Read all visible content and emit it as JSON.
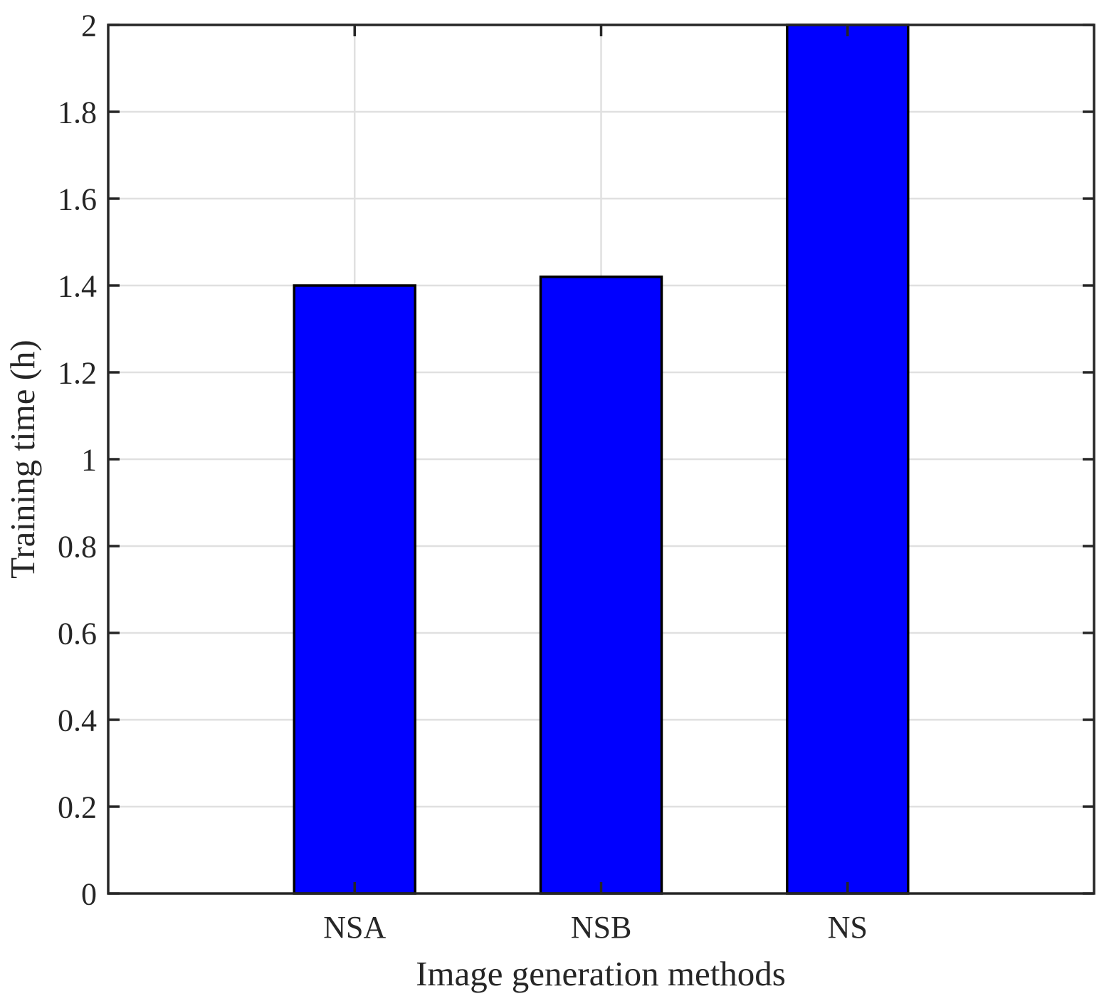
{
  "figure": {
    "background": "#FFFFFF"
  },
  "chart_data": {
    "type": "bar",
    "title": "",
    "xlabel": "Image generation methods",
    "ylabel": "Training time (h)",
    "categories": [
      "NSA",
      "NSB",
      "NS"
    ],
    "values": [
      1.4,
      1.42,
      2.0
    ],
    "series": [
      {
        "name": "Training time",
        "values": [
          1.4,
          1.42,
          2.0
        ]
      }
    ],
    "ylim": [
      0,
      2
    ],
    "ytick_values": [
      0,
      0.2,
      0.4,
      0.6,
      0.8,
      1,
      1.2,
      1.4,
      1.6,
      1.8,
      2
    ],
    "ytick_labels": [
      "0",
      "0.2",
      "0.4",
      "0.6",
      "0.8",
      "1",
      "1.2",
      "1.4",
      "1.6",
      "1.8",
      "2"
    ],
    "grid": true,
    "grid_horizontal": true,
    "grid_vertical_at_categories": true,
    "legend": false,
    "box": true,
    "tick_direction": "in",
    "bar_color": "#0000FF",
    "bar_edge_color": "#000000",
    "grid_color": "#E0E0E0",
    "axis_color": "#262626",
    "text_color": "#262626"
  }
}
